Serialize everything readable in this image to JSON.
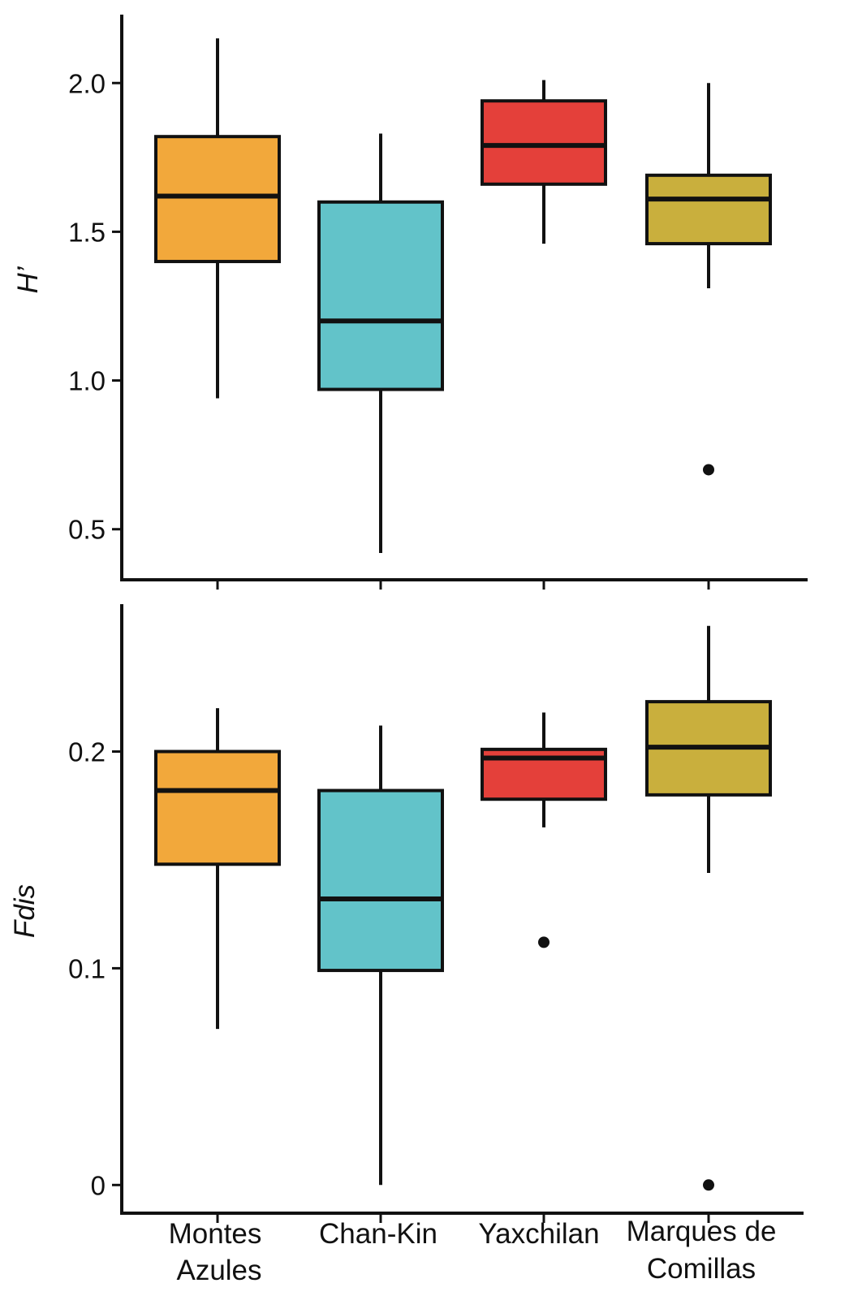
{
  "chart_data": [
    {
      "type": "box",
      "ylabel": "H’",
      "xlabel": "",
      "ylim": [
        0.33,
        2.23
      ],
      "yticks": [
        {
          "value": 0.5,
          "label": "0.5"
        },
        {
          "value": 1.0,
          "label": "1.0"
        },
        {
          "value": 1.5,
          "label": "1.5"
        },
        {
          "value": 2.0,
          "label": "2.0"
        }
      ],
      "grid": false,
      "legend": "none",
      "boxes": [
        {
          "category": "Montes Azules",
          "color": "#F2A83B",
          "whisker_low": 0.94,
          "q1": 1.4,
          "median": 1.62,
          "q3": 1.82,
          "whisker_high": 2.15,
          "outliers": []
        },
        {
          "category": "Chan-Kin",
          "color": "#62C3C9",
          "whisker_low": 0.42,
          "q1": 0.97,
          "median": 1.2,
          "q3": 1.6,
          "whisker_high": 1.83,
          "outliers": []
        },
        {
          "category": "Yaxchilan",
          "color": "#E4403A",
          "whisker_low": 1.46,
          "q1": 1.66,
          "median": 1.79,
          "q3": 1.94,
          "whisker_high": 2.01,
          "outliers": []
        },
        {
          "category": "Marques de Comillas",
          "color": "#C9AF3D",
          "whisker_low": 1.31,
          "q1": 1.46,
          "median": 1.61,
          "q3": 1.69,
          "whisker_high": 2.0,
          "outliers": [
            0.7
          ]
        }
      ]
    },
    {
      "type": "box",
      "ylabel": "Fdis",
      "xlabel": "",
      "ylim": [
        -0.013,
        0.268
      ],
      "yticks": [
        {
          "value": 0,
          "label": "0"
        },
        {
          "value": 0.1,
          "label": "0.1"
        },
        {
          "value": 0.2,
          "label": "0.2"
        }
      ],
      "grid": false,
      "legend": "none",
      "boxes": [
        {
          "category": "Montes Azules",
          "color": "#F2A83B",
          "whisker_low": 0.072,
          "q1": 0.148,
          "median": 0.182,
          "q3": 0.2,
          "whisker_high": 0.22,
          "outliers": []
        },
        {
          "category": "Chan-Kin",
          "color": "#62C3C9",
          "whisker_low": 0.0,
          "q1": 0.099,
          "median": 0.132,
          "q3": 0.182,
          "whisker_high": 0.212,
          "outliers": []
        },
        {
          "category": "Yaxchilan",
          "color": "#E4403A",
          "whisker_low": 0.165,
          "q1": 0.178,
          "median": 0.197,
          "q3": 0.201,
          "whisker_high": 0.218,
          "outliers": [
            0.112
          ]
        },
        {
          "category": "Marques de Comillas",
          "color": "#C9AF3D",
          "whisker_low": 0.144,
          "q1": 0.18,
          "median": 0.202,
          "q3": 0.223,
          "whisker_high": 0.258,
          "outliers": [
            0.0
          ]
        }
      ]
    }
  ],
  "categories": [
    {
      "line1": "Montes",
      "line2": "Azules"
    },
    {
      "line1": "Chan-Kin",
      "line2": ""
    },
    {
      "line1": "Yaxchilan",
      "line2": ""
    },
    {
      "line1": "Marques de",
      "line2": "Comillas"
    }
  ]
}
